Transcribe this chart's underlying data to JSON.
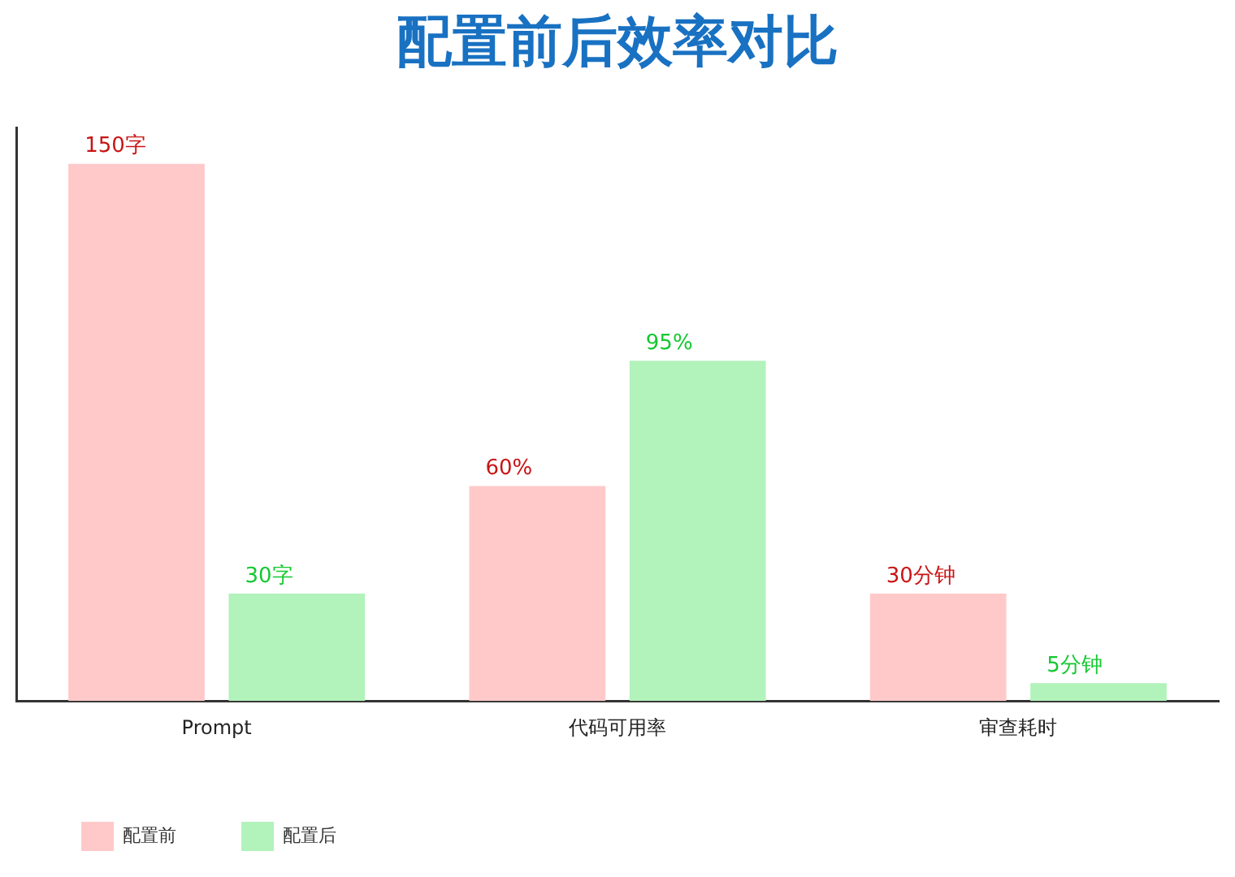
{
  "chart_data": {
    "type": "bar",
    "title": "配置前后效率对比",
    "tick_labels": "x",
    "legend": "bottom left",
    "categories": [
      "Prompt",
      "代码可用率",
      "审查耗时"
    ],
    "series": [
      {
        "name": "配置前",
        "color": "#ffc9c9",
        "values": [
          150,
          60,
          30
        ],
        "value_labels": [
          "150字",
          "60%",
          "30分钟"
        ]
      },
      {
        "name": "配置后",
        "color": "#b2f2bb",
        "values": [
          30,
          95,
          5
        ],
        "value_labels": [
          "30字",
          "95%",
          "5分钟"
        ]
      }
    ]
  }
}
